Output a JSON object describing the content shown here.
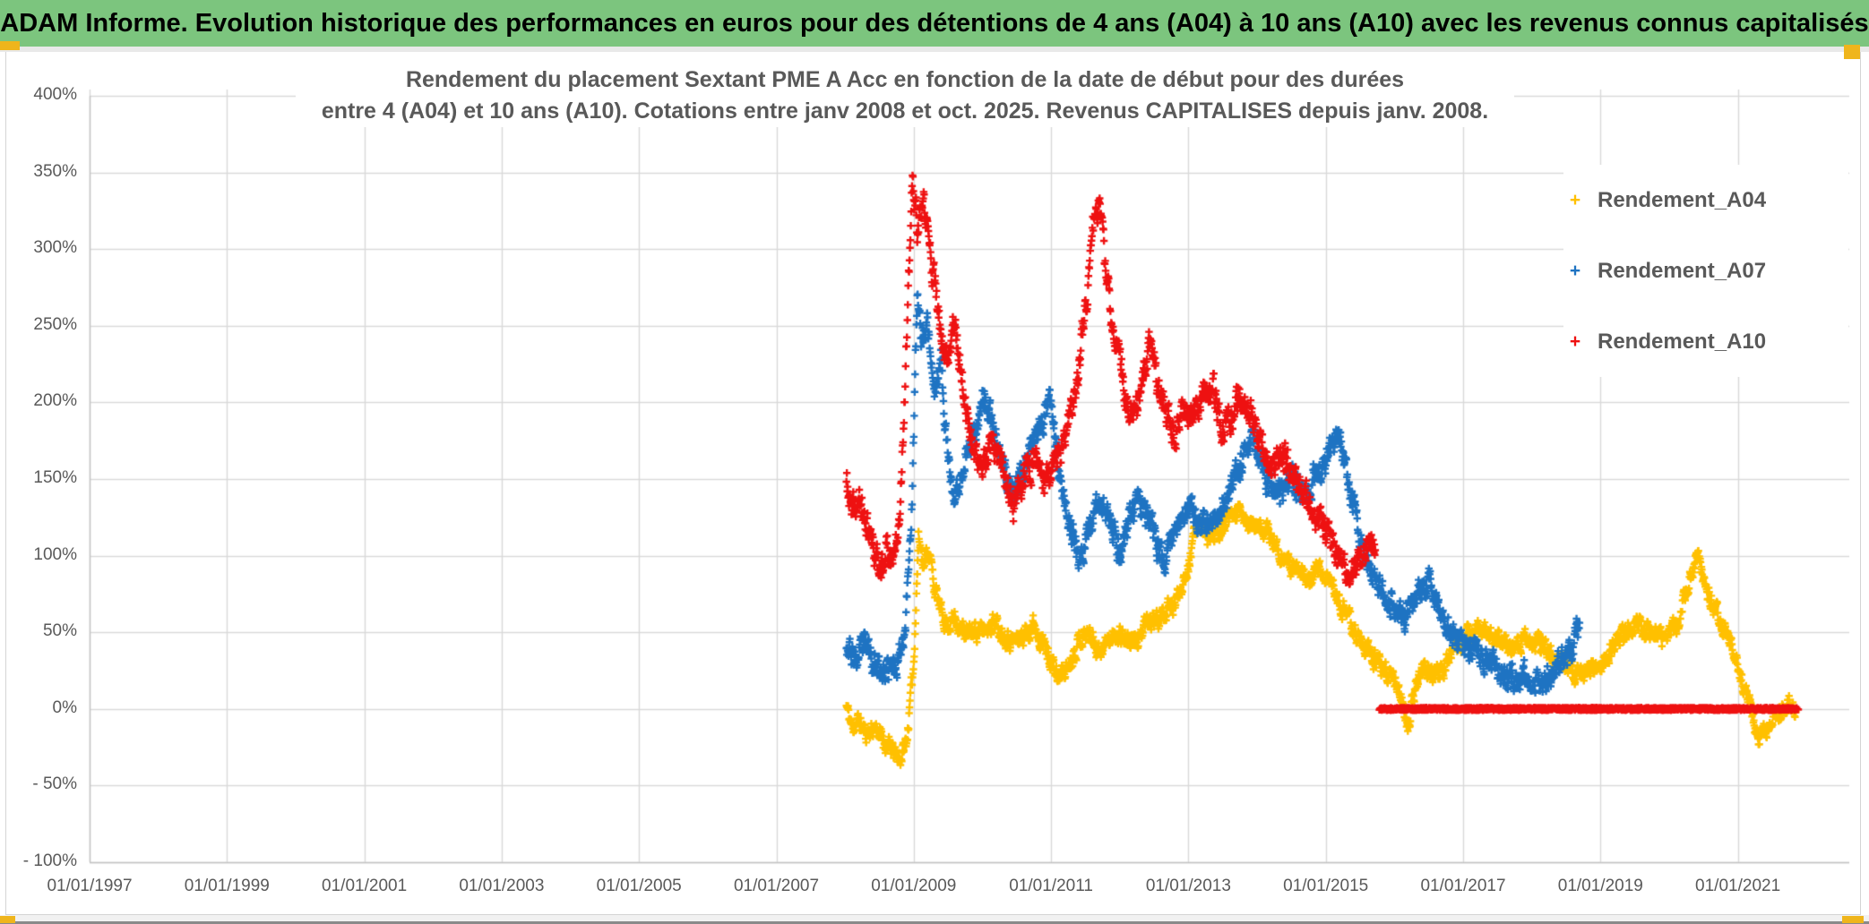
{
  "header": {
    "title": "ADAM Informe. Evolution historique des performances en euros pour des détentions de 4 ans (A04) à 10 ans (A10) avec les revenus connus capitalisés",
    "bg_color": "#7CC57E",
    "accent_color": "#EFB51C"
  },
  "chart_data": {
    "type": "scatter",
    "title_lines": [
      "Rendement du placement Sextant PME A Acc en fonction de la date de début pour des durées",
      "entre 4 (A04) et 10 ans (A10). Cotations entre janv 2008 et oct. 2025. Revenus CAPITALISES depuis janv. 2008."
    ],
    "marker": "+",
    "grid": true,
    "legend_position": "right",
    "xlabel": "",
    "ylabel": "",
    "ylim": [
      -100,
      400
    ],
    "x_range_years": [
      1997,
      2022.6
    ],
    "y_ticks": [
      {
        "label": "400%",
        "value": 400
      },
      {
        "label": "350%",
        "value": 350
      },
      {
        "label": "300%",
        "value": 300
      },
      {
        "label": "250%",
        "value": 250
      },
      {
        "label": "200%",
        "value": 200
      },
      {
        "label": "150%",
        "value": 150
      },
      {
        "label": "100%",
        "value": 100
      },
      {
        "label": "50%",
        "value": 50
      },
      {
        "label": "0%",
        "value": 0
      },
      {
        "label": "- 50%",
        "value": -50
      },
      {
        "label": "- 100%",
        "value": -100
      }
    ],
    "x_ticks": [
      {
        "label": "01/01/1997",
        "year": 1997
      },
      {
        "label": "01/01/1999",
        "year": 1999
      },
      {
        "label": "01/01/2001",
        "year": 2001
      },
      {
        "label": "01/01/2003",
        "year": 2003
      },
      {
        "label": "01/01/2005",
        "year": 2005
      },
      {
        "label": "01/01/2007",
        "year": 2007
      },
      {
        "label": "01/01/2009",
        "year": 2009
      },
      {
        "label": "01/01/2011",
        "year": 2011
      },
      {
        "label": "01/01/2013",
        "year": 2013
      },
      {
        "label": "01/01/2015",
        "year": 2015
      },
      {
        "label": "01/01/2017",
        "year": 2017
      },
      {
        "label": "01/01/2019",
        "year": 2019
      },
      {
        "label": "01/01/2021",
        "year": 2021
      }
    ],
    "series": [
      {
        "name": "Rendement_A04",
        "color": "#FFC000",
        "seed": 11,
        "noise_amp": 5,
        "points_per_year": 160,
        "anchors": [
          [
            2008.02,
            2
          ],
          [
            2008.1,
            -12
          ],
          [
            2008.2,
            -8
          ],
          [
            2008.3,
            -16
          ],
          [
            2008.45,
            -12
          ],
          [
            2008.55,
            -20
          ],
          [
            2008.7,
            -28
          ],
          [
            2008.8,
            -33
          ],
          [
            2008.9,
            -20
          ],
          [
            2009.0,
            30
          ],
          [
            2009.07,
            112
          ],
          [
            2009.15,
            95
          ],
          [
            2009.22,
            105
          ],
          [
            2009.3,
            80
          ],
          [
            2009.4,
            62
          ],
          [
            2009.5,
            55
          ],
          [
            2009.6,
            60
          ],
          [
            2009.7,
            52
          ],
          [
            2009.8,
            48
          ],
          [
            2009.9,
            52
          ],
          [
            2010.0,
            50
          ],
          [
            2010.15,
            58
          ],
          [
            2010.3,
            50
          ],
          [
            2010.45,
            44
          ],
          [
            2010.6,
            48
          ],
          [
            2010.75,
            56
          ],
          [
            2010.9,
            42
          ],
          [
            2011.1,
            20
          ],
          [
            2011.25,
            28
          ],
          [
            2011.4,
            45
          ],
          [
            2011.55,
            50
          ],
          [
            2011.7,
            38
          ],
          [
            2011.85,
            45
          ],
          [
            2012.0,
            50
          ],
          [
            2012.2,
            42
          ],
          [
            2012.4,
            55
          ],
          [
            2012.6,
            60
          ],
          [
            2012.8,
            68
          ],
          [
            2013.0,
            95
          ],
          [
            2013.15,
            125
          ],
          [
            2013.3,
            110
          ],
          [
            2013.5,
            118
          ],
          [
            2013.7,
            128
          ],
          [
            2013.9,
            120
          ],
          [
            2014.1,
            118
          ],
          [
            2014.3,
            105
          ],
          [
            2014.5,
            92
          ],
          [
            2014.7,
            85
          ],
          [
            2014.9,
            92
          ],
          [
            2015.1,
            80
          ],
          [
            2015.3,
            60
          ],
          [
            2015.5,
            45
          ],
          [
            2015.7,
            32
          ],
          [
            2015.9,
            25
          ],
          [
            2016.05,
            15
          ],
          [
            2016.2,
            -12
          ],
          [
            2016.3,
            15
          ],
          [
            2016.45,
            28
          ],
          [
            2016.6,
            20
          ],
          [
            2016.75,
            30
          ],
          [
            2016.9,
            40
          ],
          [
            2017.1,
            48
          ],
          [
            2017.3,
            52
          ],
          [
            2017.5,
            45
          ],
          [
            2017.7,
            40
          ],
          [
            2017.9,
            47
          ],
          [
            2018.1,
            42
          ],
          [
            2018.3,
            35
          ],
          [
            2018.5,
            27
          ],
          [
            2018.7,
            23
          ],
          [
            2018.9,
            25
          ],
          [
            2019.1,
            35
          ],
          [
            2019.3,
            48
          ],
          [
            2019.5,
            55
          ],
          [
            2019.7,
            50
          ],
          [
            2019.9,
            45
          ],
          [
            2020.1,
            55
          ],
          [
            2020.3,
            85
          ],
          [
            2020.42,
            102
          ],
          [
            2020.55,
            75
          ],
          [
            2020.7,
            62
          ],
          [
            2020.85,
            48
          ],
          [
            2021.0,
            25
          ],
          [
            2021.15,
            5
          ],
          [
            2021.3,
            -18
          ],
          [
            2021.45,
            -10
          ],
          [
            2021.6,
            -3
          ],
          [
            2021.75,
            1
          ],
          [
            2021.85,
            2
          ]
        ]
      },
      {
        "name": "Rendement_A07",
        "color": "#1E73C2",
        "seed": 23,
        "noise_amp": 7,
        "points_per_year": 160,
        "anchors": [
          [
            2008.02,
            45
          ],
          [
            2008.15,
            30
          ],
          [
            2008.3,
            42
          ],
          [
            2008.45,
            30
          ],
          [
            2008.6,
            22
          ],
          [
            2008.75,
            30
          ],
          [
            2008.88,
            55
          ],
          [
            2008.98,
            140
          ],
          [
            2009.05,
            268
          ],
          [
            2009.12,
            240
          ],
          [
            2009.2,
            255
          ],
          [
            2009.3,
            205
          ],
          [
            2009.4,
            228
          ],
          [
            2009.5,
            160
          ],
          [
            2009.6,
            135
          ],
          [
            2009.75,
            165
          ],
          [
            2009.9,
            182
          ],
          [
            2010.0,
            205
          ],
          [
            2010.15,
            185
          ],
          [
            2010.3,
            158
          ],
          [
            2010.45,
            140
          ],
          [
            2010.6,
            152
          ],
          [
            2010.75,
            178
          ],
          [
            2010.9,
            192
          ],
          [
            2011.0,
            200
          ],
          [
            2011.1,
            162
          ],
          [
            2011.25,
            125
          ],
          [
            2011.4,
            96
          ],
          [
            2011.55,
            118
          ],
          [
            2011.7,
            138
          ],
          [
            2011.85,
            122
          ],
          [
            2012.0,
            102
          ],
          [
            2012.15,
            126
          ],
          [
            2012.3,
            136
          ],
          [
            2012.5,
            112
          ],
          [
            2012.65,
            96
          ],
          [
            2012.8,
            120
          ],
          [
            2013.0,
            130
          ],
          [
            2013.2,
            116
          ],
          [
            2013.4,
            126
          ],
          [
            2013.6,
            142
          ],
          [
            2013.8,
            166
          ],
          [
            2013.95,
            180
          ],
          [
            2014.1,
            152
          ],
          [
            2014.3,
            136
          ],
          [
            2014.5,
            150
          ],
          [
            2014.7,
            140
          ],
          [
            2014.9,
            155
          ],
          [
            2015.05,
            168
          ],
          [
            2015.2,
            178
          ],
          [
            2015.35,
            140
          ],
          [
            2015.5,
            112
          ],
          [
            2015.65,
            92
          ],
          [
            2015.8,
            80
          ],
          [
            2015.95,
            70
          ],
          [
            2016.1,
            58
          ],
          [
            2016.3,
            72
          ],
          [
            2016.5,
            84
          ],
          [
            2016.7,
            64
          ],
          [
            2016.9,
            46
          ],
          [
            2017.1,
            40
          ],
          [
            2017.3,
            34
          ],
          [
            2017.5,
            26
          ],
          [
            2017.7,
            20
          ],
          [
            2017.9,
            23
          ],
          [
            2018.1,
            18
          ],
          [
            2018.3,
            26
          ],
          [
            2018.45,
            32
          ],
          [
            2018.6,
            42
          ],
          [
            2018.7,
            60
          ]
        ]
      },
      {
        "name": "Rendement_A10",
        "color": "#EE1111",
        "seed": 37,
        "noise_amp": 8,
        "points_per_year": 160,
        "flat_zero_segment": [
          2015.78,
          2021.88
        ],
        "anchors": [
          [
            2008.02,
            148
          ],
          [
            2008.1,
            126
          ],
          [
            2008.2,
            136
          ],
          [
            2008.35,
            115
          ],
          [
            2008.5,
            92
          ],
          [
            2008.6,
            106
          ],
          [
            2008.7,
            96
          ],
          [
            2008.8,
            135
          ],
          [
            2008.9,
            240
          ],
          [
            2008.98,
            345
          ],
          [
            2009.06,
            310
          ],
          [
            2009.14,
            330
          ],
          [
            2009.22,
            305
          ],
          [
            2009.3,
            278
          ],
          [
            2009.4,
            240
          ],
          [
            2009.5,
            232
          ],
          [
            2009.6,
            256
          ],
          [
            2009.7,
            215
          ],
          [
            2009.8,
            186
          ],
          [
            2009.9,
            166
          ],
          [
            2010.0,
            156
          ],
          [
            2010.15,
            170
          ],
          [
            2010.3,
            155
          ],
          [
            2010.45,
            132
          ],
          [
            2010.6,
            150
          ],
          [
            2010.75,
            165
          ],
          [
            2010.9,
            146
          ],
          [
            2011.05,
            158
          ],
          [
            2011.2,
            175
          ],
          [
            2011.35,
            205
          ],
          [
            2011.5,
            262
          ],
          [
            2011.62,
            315
          ],
          [
            2011.7,
            335
          ],
          [
            2011.78,
            290
          ],
          [
            2011.88,
            255
          ],
          [
            2012.0,
            230
          ],
          [
            2012.1,
            202
          ],
          [
            2012.2,
            186
          ],
          [
            2012.32,
            214
          ],
          [
            2012.45,
            238
          ],
          [
            2012.55,
            212
          ],
          [
            2012.7,
            192
          ],
          [
            2012.8,
            176
          ],
          [
            2012.9,
            196
          ],
          [
            2013.05,
            188
          ],
          [
            2013.2,
            205
          ],
          [
            2013.35,
            212
          ],
          [
            2013.5,
            182
          ],
          [
            2013.65,
            192
          ],
          [
            2013.8,
            206
          ],
          [
            2013.95,
            186
          ],
          [
            2014.1,
            168
          ],
          [
            2014.25,
            155
          ],
          [
            2014.4,
            165
          ],
          [
            2014.55,
            148
          ],
          [
            2014.7,
            138
          ],
          [
            2014.85,
            128
          ],
          [
            2015.0,
            116
          ],
          [
            2015.15,
            102
          ],
          [
            2015.3,
            88
          ],
          [
            2015.45,
            96
          ],
          [
            2015.6,
            108
          ],
          [
            2015.72,
            104
          ]
        ]
      }
    ]
  }
}
